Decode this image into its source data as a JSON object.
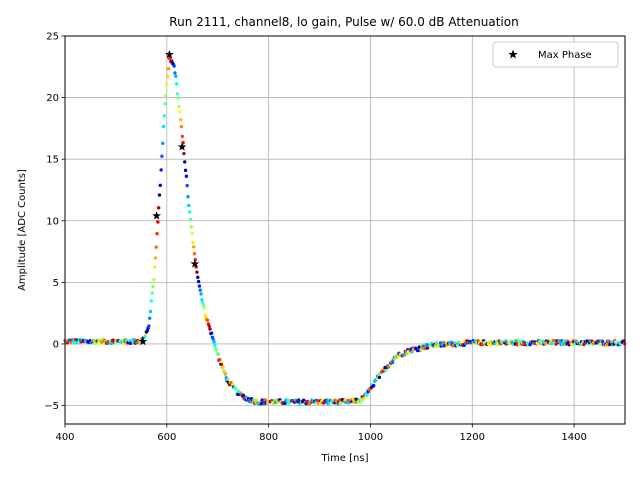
{
  "chart_data": {
    "type": "scatter",
    "title": "Run 2111, channel8, lo gain, Pulse w/ 60.0 dB Attenuation",
    "xlabel": "Time [ns]",
    "ylabel": "Amplitude [ADC Counts]",
    "xlim": [
      400,
      1500
    ],
    "ylim": [
      -6.5,
      25
    ],
    "xticks": [
      400,
      600,
      800,
      1000,
      1200,
      1400
    ],
    "yticks": [
      -5,
      0,
      5,
      10,
      15,
      20,
      25
    ],
    "grid": true,
    "legend_position": "top-right",
    "legend": [
      "Max Phase"
    ],
    "colormap": "jet",
    "pulse_profile": {
      "description": "waveform samples drawn as colored points",
      "x": [
        400,
        540,
        555,
        565,
        575,
        585,
        595,
        605,
        615,
        625,
        635,
        645,
        655,
        665,
        675,
        690,
        705,
        720,
        740,
        760,
        780,
        800,
        850,
        900,
        950,
        980,
        995,
        1010,
        1030,
        1050,
        1080,
        1120,
        1200,
        1300,
        1400,
        1500
      ],
      "y": [
        0.2,
        0.2,
        0.4,
        1.5,
        5.5,
        11.5,
        18.5,
        23.2,
        22.5,
        19.0,
        15.0,
        10.5,
        7.0,
        4.5,
        2.5,
        0.5,
        -1.5,
        -3.0,
        -4.0,
        -4.5,
        -4.7,
        -4.7,
        -4.7,
        -4.7,
        -4.7,
        -4.6,
        -4.0,
        -3.0,
        -2.0,
        -1.0,
        -0.5,
        -0.1,
        0.1,
        0.1,
        0.1,
        0.1
      ]
    },
    "series": [
      {
        "name": "Max Phase",
        "marker": "star",
        "color": "#000000",
        "x": [
          553,
          580,
          605,
          630,
          655
        ],
        "y": [
          0.2,
          10.4,
          23.5,
          16.0,
          6.5
        ]
      }
    ]
  }
}
